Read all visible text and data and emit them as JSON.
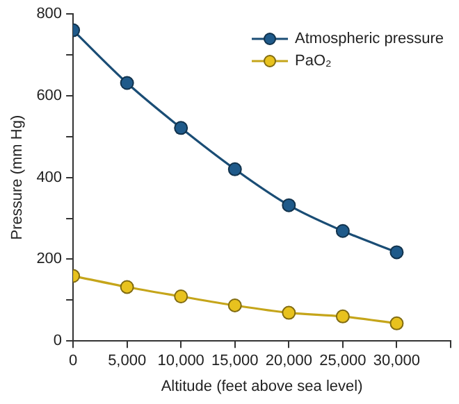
{
  "chart_data": {
    "type": "line",
    "xlabel": "Altitude (feet above sea level)",
    "ylabel": "Pressure (mm Hg)",
    "x": [
      0,
      5000,
      10000,
      15000,
      20000,
      25000,
      30000
    ],
    "series": [
      {
        "name": "Atmospheric pressure",
        "color": "#1f5a8a",
        "values": [
          760,
          631,
          521,
          420,
          332,
          269,
          217
        ]
      },
      {
        "name": "PaO₂",
        "color": "#e8c21e",
        "values": [
          159,
          132,
          109,
          87,
          69,
          60,
          43
        ]
      }
    ],
    "xlim": [
      0,
      35000
    ],
    "xticks": [
      0,
      {
        "value": 5000,
        "label": "5,000"
      },
      {
        "value": 10000,
        "label": "10,000"
      },
      {
        "value": 15000,
        "label": "15,000"
      },
      {
        "value": 20000,
        "label": "20,000"
      },
      {
        "value": 25000,
        "label": "25,000"
      },
      {
        "value": 30000,
        "label": "30,000"
      },
      {
        "value": 35000,
        "label": null
      }
    ],
    "ylim": [
      0,
      800
    ],
    "yticks": [
      0,
      {
        "value": 100,
        "label": null
      },
      200,
      {
        "value": 300,
        "label": null
      },
      400,
      {
        "value": 500,
        "label": null
      },
      600,
      {
        "value": 700,
        "label": null
      },
      800
    ],
    "grid": false,
    "legend": "top right",
    "marker": "circle",
    "line_style": "solid"
  }
}
